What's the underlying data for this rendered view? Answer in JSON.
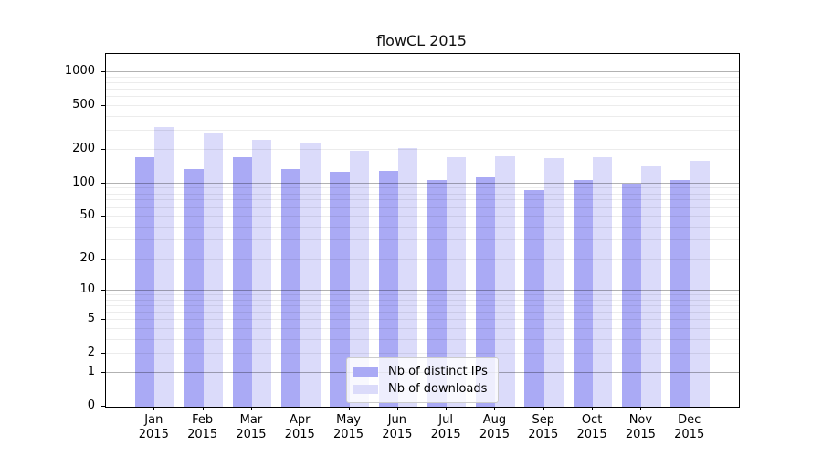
{
  "title": "flowCL 2015",
  "chart_data": {
    "type": "bar",
    "title": "flowCL 2015",
    "categories": [
      "Jan",
      "Feb",
      "Mar",
      "Apr",
      "May",
      "Jun",
      "Jul",
      "Aug",
      "Sep",
      "Oct",
      "Nov",
      "Dec"
    ],
    "category_year": "2015",
    "series": [
      {
        "name": "Nb of distinct IPs",
        "color": "#aaaaf5",
        "values": [
          172,
          134,
          174,
          134,
          127,
          130,
          107,
          115,
          88,
          107,
          100,
          108
        ]
      },
      {
        "name": "Nb of downloads",
        "color": "#dbdbfa",
        "values": [
          326,
          285,
          250,
          229,
          197,
          210,
          172,
          178,
          169,
          172,
          143,
          160
        ]
      }
    ],
    "y_ticks": [
      0,
      1,
      2,
      5,
      10,
      20,
      50,
      100,
      200,
      500,
      1000
    ],
    "y_scale": "log1p",
    "ylim": [
      0,
      1473
    ],
    "grid": true,
    "legend_position": "lower center"
  }
}
